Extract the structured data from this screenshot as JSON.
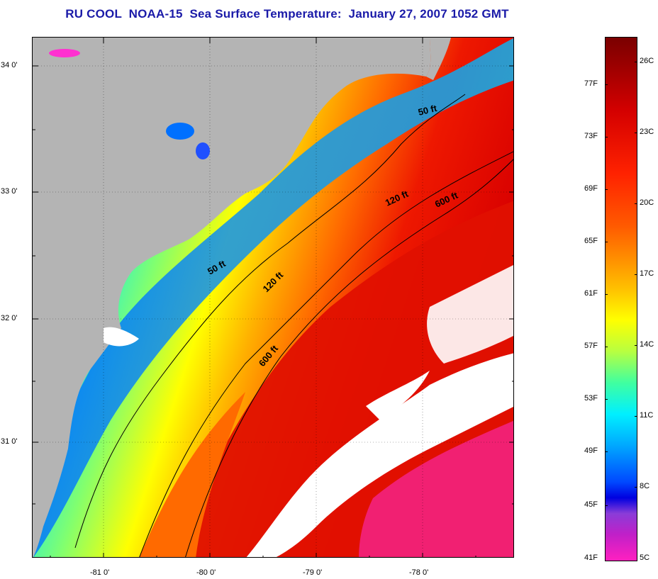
{
  "title": "RU COOL  NOAA-15  Sea Surface Temperature:  January 27, 2007 1052 GMT",
  "map": {
    "lat_labels": [
      "34 0'",
      "33 0'",
      "32 0'",
      "31 0'"
    ],
    "lon_labels": [
      "-81 0'",
      "-80 0'",
      "-79 0'",
      "-78 0'"
    ],
    "contour_labels": [
      "50 ft",
      "120 ft",
      "600 ft",
      "50 ft",
      "120 ft",
      "600 ft"
    ],
    "colors": {
      "land": "#b4b4b4",
      "cloud": "#ffffff",
      "warm": "#e00000",
      "orange": "#ff7a00",
      "yellow": "#ffff00",
      "cyan": "#00e8ff",
      "blue": "#0070ff",
      "magenta": "#ff30d0"
    }
  },
  "colorbar": {
    "fahrenheit_labels": [
      "77F",
      "73F",
      "69F",
      "65F",
      "61F",
      "57F",
      "53F",
      "49F",
      "45F",
      "41F"
    ],
    "celsius_labels": [
      "26C",
      "23C",
      "20C",
      "17C",
      "14C",
      "11C",
      "8C",
      "5C"
    ]
  }
}
